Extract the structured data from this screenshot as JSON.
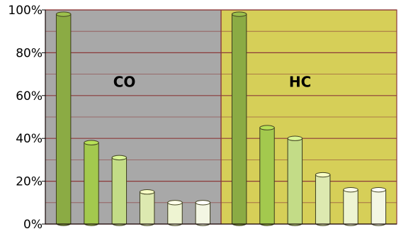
{
  "chart_data": {
    "type": "bar",
    "style": "3d-cylinder",
    "ylim": [
      0,
      100
    ],
    "yticks": [
      "0%",
      "20%",
      "40%",
      "60%",
      "80%",
      "100%"
    ],
    "grid": true,
    "xlabel": "",
    "ylabel": "",
    "title": "",
    "groups": [
      {
        "label": "CO",
        "background": "#a8a8a8",
        "values": [
          98,
          38,
          31,
          15,
          10,
          10
        ],
        "colors": [
          "#8bab44",
          "#a3c94e",
          "#c3dc87",
          "#dde9b0",
          "#eef4d2",
          "#f3f6e3"
        ]
      },
      {
        "label": "HC",
        "background": "#d6cf58",
        "values": [
          98,
          45,
          40,
          23,
          16,
          16
        ],
        "colors": [
          "#8bab44",
          "#a3c94e",
          "#c3dc87",
          "#dde9b0",
          "#eef4d2",
          "#f3f6e3"
        ]
      }
    ],
    "colors": {
      "gridline": "#8b3a3a",
      "frame": "#8b3a3a",
      "divider": "#8b3a3a"
    }
  }
}
